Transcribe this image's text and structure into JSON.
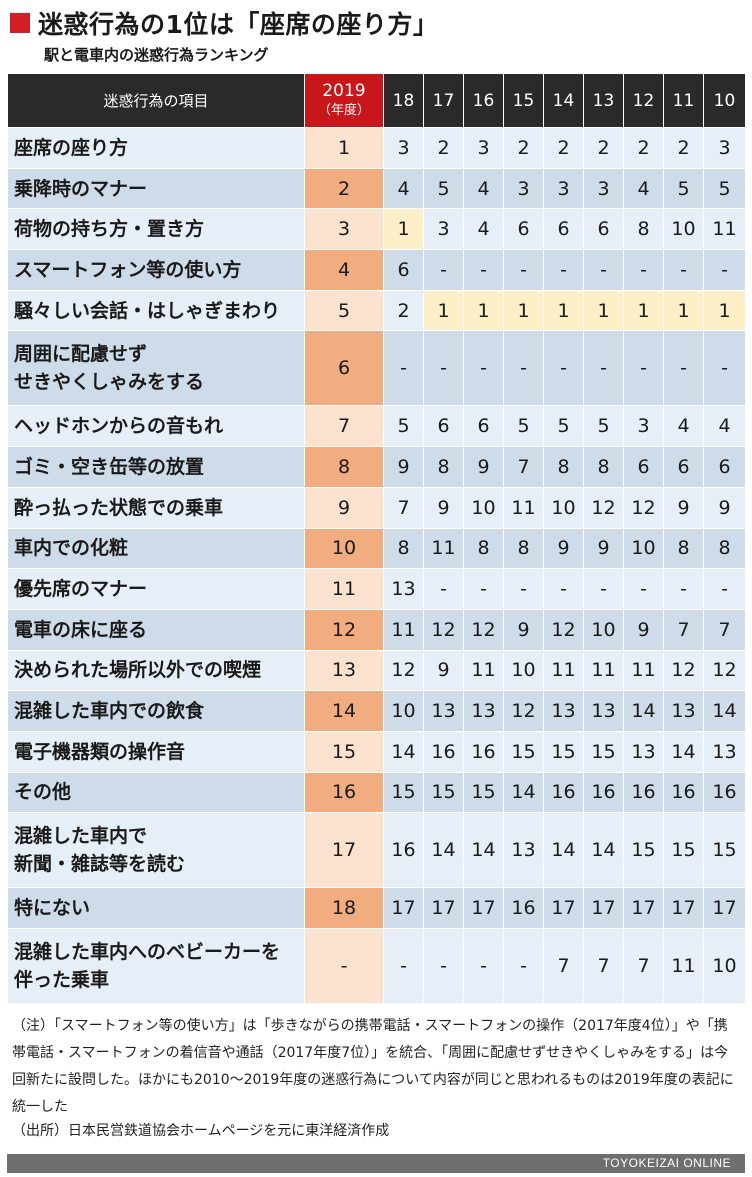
{
  "title": "迷惑行為の1位は「座席の座り方」",
  "subtitle": "駅と電車内の迷惑行為ランキング",
  "table": {
    "item_header": "迷惑行為の項目",
    "year_current": "2019",
    "year_current_sub": "（年度）",
    "years": [
      "18",
      "17",
      "16",
      "15",
      "14",
      "13",
      "12",
      "11",
      "10"
    ],
    "rows": [
      {
        "item": "座席の座り方",
        "rank": "1",
        "history": [
          "3",
          "2",
          "3",
          "2",
          "2",
          "2",
          "2",
          "2",
          "3"
        ]
      },
      {
        "item": "乗降時のマナー",
        "rank": "2",
        "history": [
          "4",
          "5",
          "4",
          "3",
          "3",
          "3",
          "4",
          "5",
          "5"
        ]
      },
      {
        "item": "荷物の持ち方・置き方",
        "rank": "3",
        "history": [
          "1",
          "3",
          "4",
          "6",
          "6",
          "6",
          "8",
          "10",
          "11"
        ]
      },
      {
        "item": "スマートフォン等の使い方",
        "rank": "4",
        "history": [
          "6",
          "-",
          "-",
          "-",
          "-",
          "-",
          "-",
          "-",
          "-"
        ]
      },
      {
        "item": "騒々しい会話・はしゃぎまわり",
        "rank": "5",
        "history": [
          "2",
          "1",
          "1",
          "1",
          "1",
          "1",
          "1",
          "1",
          "1"
        ]
      },
      {
        "item": "周囲に配慮せず\nせきやくしゃみをする",
        "rank": "6",
        "history": [
          "-",
          "-",
          "-",
          "-",
          "-",
          "-",
          "-",
          "-",
          "-"
        ]
      },
      {
        "item": "ヘッドホンからの音もれ",
        "rank": "7",
        "history": [
          "5",
          "6",
          "6",
          "5",
          "5",
          "5",
          "3",
          "4",
          "4"
        ]
      },
      {
        "item": "ゴミ・空き缶等の放置",
        "rank": "8",
        "history": [
          "9",
          "8",
          "9",
          "7",
          "8",
          "8",
          "6",
          "6",
          "6"
        ]
      },
      {
        "item": "酔っ払った状態での乗車",
        "rank": "9",
        "history": [
          "7",
          "9",
          "10",
          "11",
          "10",
          "12",
          "12",
          "9",
          "9"
        ]
      },
      {
        "item": "車内での化粧",
        "rank": "10",
        "history": [
          "8",
          "11",
          "8",
          "8",
          "9",
          "9",
          "10",
          "8",
          "8"
        ]
      },
      {
        "item": "優先席のマナー",
        "rank": "11",
        "history": [
          "13",
          "-",
          "-",
          "-",
          "-",
          "-",
          "-",
          "-",
          "-"
        ]
      },
      {
        "item": "電車の床に座る",
        "rank": "12",
        "history": [
          "11",
          "12",
          "12",
          "9",
          "12",
          "10",
          "9",
          "7",
          "7"
        ]
      },
      {
        "item": "決められた場所以外での喫煙",
        "rank": "13",
        "history": [
          "12",
          "9",
          "11",
          "10",
          "11",
          "11",
          "11",
          "12",
          "12"
        ]
      },
      {
        "item": "混雑した車内での飲食",
        "rank": "14",
        "history": [
          "10",
          "13",
          "13",
          "12",
          "13",
          "13",
          "14",
          "13",
          "14"
        ]
      },
      {
        "item": "電子機器類の操作音",
        "rank": "15",
        "history": [
          "14",
          "16",
          "16",
          "15",
          "15",
          "15",
          "13",
          "14",
          "13"
        ]
      },
      {
        "item": "その他",
        "rank": "16",
        "history": [
          "15",
          "15",
          "15",
          "14",
          "16",
          "16",
          "16",
          "16",
          "16"
        ]
      },
      {
        "item": "混雑した車内で\n新聞・雑誌等を読む",
        "rank": "17",
        "history": [
          "16",
          "14",
          "14",
          "13",
          "14",
          "14",
          "15",
          "15",
          "15"
        ]
      },
      {
        "item": "特にない",
        "rank": "18",
        "history": [
          "17",
          "17",
          "17",
          "16",
          "17",
          "17",
          "17",
          "17",
          "17"
        ]
      },
      {
        "item": "混雑した車内へのベビーカーを\n伴った乗車",
        "rank": "-",
        "history": [
          "-",
          "-",
          "-",
          "-",
          "7",
          "7",
          "7",
          "11",
          "10"
        ]
      }
    ]
  },
  "note": "（注）「スマートフォン等の使い方」は「歩きながらの携帯電話・スマートフォンの操作（2017年度4位）」や「携帯電話・スマートフォンの着信音や通話（2017年度7位）」を統合、「周囲に配慮せずせきやくしゃみをする」は今回新たに設問した。ほかにも2010〜2019年度の迷惑行為について内容が同じと思われるものは2019年度の表記に統一した",
  "source": "（出所）日本民営鉄道協会ホームページを元に東洋経済作成",
  "footer": "TOYOKEIZAI ONLINE",
  "colors": {
    "accent_red": "#d21f25",
    "header_dark": "#2a2a2a",
    "row_light": "#e6eef7",
    "row_dark": "#cedcea",
    "rank_light": "#fbe2cf",
    "rank_dark": "#f1ad7f",
    "highlight_first": "#fdf0c8"
  }
}
